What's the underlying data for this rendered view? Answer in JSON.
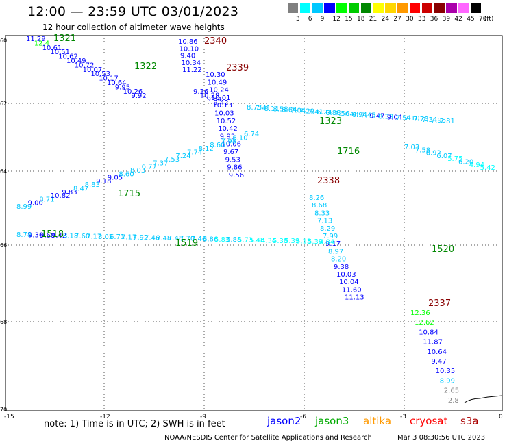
{
  "header": {
    "title": "12:00 — 23:59 UTC 03/01/2023",
    "subtitle": "12 hour collection of altimeter wave heights"
  },
  "color_scale": {
    "unit": "(ft)",
    "bins": [
      {
        "label": "3",
        "color": "#808080"
      },
      {
        "label": "6",
        "color": "#00ffff"
      },
      {
        "label": "9",
        "color": "#00c8ff"
      },
      {
        "label": "12",
        "color": "#0000ff"
      },
      {
        "label": "15",
        "color": "#00ff00"
      },
      {
        "label": "18",
        "color": "#00cc00"
      },
      {
        "label": "21",
        "color": "#008800"
      },
      {
        "label": "24",
        "color": "#ffff00"
      },
      {
        "label": "27",
        "color": "#ffd700"
      },
      {
        "label": "30",
        "color": "#ff9900"
      },
      {
        "label": "33",
        "color": "#ff0000"
      },
      {
        "label": "36",
        "color": "#cc0000"
      },
      {
        "label": "39",
        "color": "#880000"
      },
      {
        "label": "42",
        "color": "#aa00aa"
      },
      {
        "label": "45",
        "color": "#ff66ff"
      },
      {
        "label": "70",
        "color": "#000000"
      }
    ]
  },
  "axes": {
    "lat_labels": [
      "60",
      "62",
      "64",
      "66",
      "68",
      "70"
    ],
    "lon_labels": [
      "-15",
      "-12",
      "-9",
      "-6",
      "-3",
      "0"
    ]
  },
  "passes": [
    {
      "label": "1321",
      "color": "#008800",
      "values": [
        "11.29",
        "12.4",
        "10.61",
        "10.51",
        "10.62",
        "10.49",
        "10.72",
        "10.07",
        "10.53",
        "10.17",
        "10.64",
        "9.95",
        "10.26",
        "9.92"
      ]
    },
    {
      "label": "2340",
      "color": "#880000",
      "values": [
        "10.86",
        "10.10",
        "9.40",
        "10.34",
        "11.22"
      ]
    },
    {
      "label": "1322",
      "color": "#008800",
      "values": [
        "9.36",
        "10.29",
        "9.54",
        "9.42"
      ]
    },
    {
      "label": "2339",
      "color": "#880000",
      "values": [
        "10.30",
        "10.49",
        "10.24",
        "10.01",
        "10.13",
        "10.03",
        "10.52",
        "10.42",
        "9.93",
        "10.06",
        "9.67",
        "9.53",
        "9.86",
        "9.56"
      ]
    },
    {
      "label": "1323",
      "color": "#008800",
      "values": [
        "8.73",
        "7.41",
        "8.11",
        "8.58",
        "8.64",
        "7.04",
        "7.29",
        "7.41",
        "6.24",
        "6.88",
        "7.56",
        "7.48",
        "6.94",
        "7.45",
        "9.47",
        "8.39",
        "9.04",
        "7.54",
        "7.10",
        "7.73",
        "7.34",
        "7.95",
        "7.81"
      ]
    },
    {
      "label": "1716",
      "color": "#008800",
      "values": [
        "7.03",
        "7.58",
        "6.92",
        "6.07",
        "5.75",
        "6.20",
        "4.94",
        "5.42"
      ]
    },
    {
      "label": "1715",
      "color": "#008800",
      "values": [
        "8.99",
        "9.00",
        "8.71",
        "10.82",
        "9.83",
        "8.47",
        "8.83",
        "9.18",
        "9.05",
        "8.60",
        "8.03",
        "6.77",
        "7.37",
        "7.53",
        "7.24",
        "7.74",
        "8.12",
        "8.60",
        "7.98",
        "6.10",
        "6.74"
      ]
    },
    {
      "label": "2338",
      "color": "#880000",
      "values": [
        "8.26",
        "8.68",
        "8.33",
        "7.13",
        "8.29",
        "7.99",
        "9.17",
        "8.97",
        "8.20",
        "9.38",
        "10.03",
        "10.04",
        "11.60",
        "11.13"
      ]
    },
    {
      "label": "1518",
      "color": "#008800",
      "values": [
        "8.78",
        "9.36",
        "9.60",
        "9.42",
        "8.18",
        "7.60",
        "7.17",
        "8.02",
        "6.71",
        "7.17",
        "7.92",
        "7.46",
        "7.48",
        "7.48",
        "7.70",
        "7.46",
        "6.86",
        "5.83",
        "6.88",
        "5.73",
        "5.48",
        "4.34",
        "5.38",
        "5.39",
        "5.13",
        "5.39",
        "4.84"
      ]
    },
    {
      "label": "1519",
      "color": "#008800",
      "values": []
    },
    {
      "label": "1520",
      "color": "#008800",
      "values": []
    },
    {
      "label": "2337",
      "color": "#880000",
      "values": [
        "12.36",
        "12.62",
        "10.84",
        "11.87",
        "10.64",
        "9.47",
        "10.35",
        "8.99",
        "2.65",
        "2.8"
      ]
    }
  ],
  "footer": {
    "note": "note: 1) Time is in UTC; 2) SWH is in feet",
    "satellites": [
      {
        "name": "jason2",
        "color": "#0000ff"
      },
      {
        "name": "jason3",
        "color": "#00aa00"
      },
      {
        "name": "altika",
        "color": "#ff9900"
      },
      {
        "name": "cryosat",
        "color": "#ff0000"
      },
      {
        "name": "s3a",
        "color": "#aa0000"
      }
    ],
    "credit": "NOAA/NESDIS Center for Satellite Applications and Research",
    "timestamp": "Mar  3 08:30:56 UTC 2023"
  }
}
